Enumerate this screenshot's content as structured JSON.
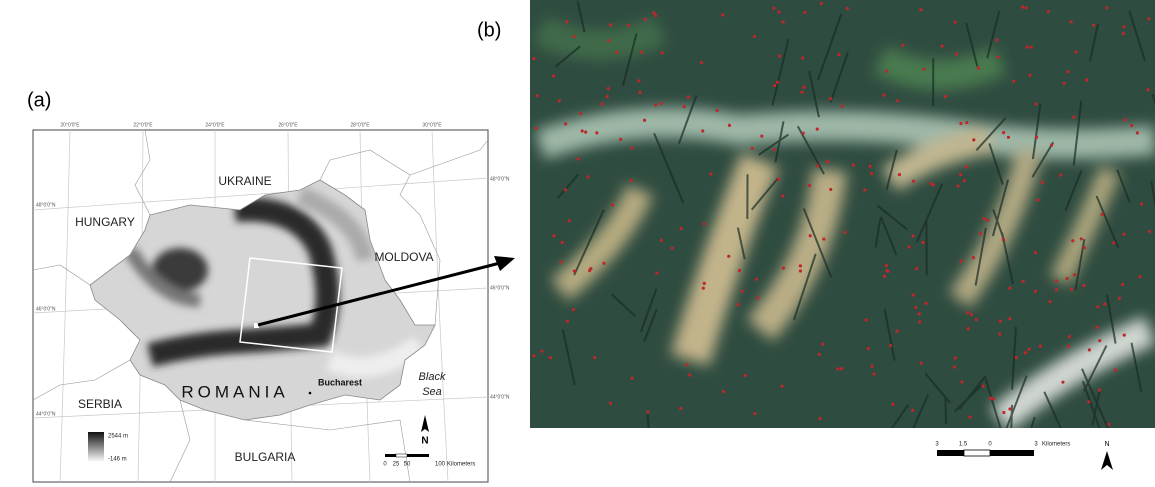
{
  "panel_a": {
    "label": "(a)",
    "countries": [
      "UKRAINE",
      "HUNGARY",
      "MOLDOVA",
      "SERBIA",
      "BULGARIA"
    ],
    "country_name": "ROMANIA",
    "capital": "Bucharest",
    "sea": [
      "Black",
      "Sea"
    ],
    "legend": {
      "max": "2544 m",
      "min": "-146 m"
    },
    "scale": {
      "ticks": [
        "0",
        "25",
        "50",
        "100"
      ],
      "unit": "Kilometers"
    },
    "north": "N",
    "graticule": {
      "top": [
        "20°0'0\"E",
        "22°0'0\"E",
        "24°0'0\"E",
        "26°0'0\"E",
        "28°0'0\"E",
        "30°0'0\"E"
      ],
      "left": [
        "48°0'0\"N",
        "46°0'0\"N",
        "44°0'0\"N"
      ],
      "right": [
        "48°0'0\"N",
        "46°0'0\"N",
        "44°0'0\"N"
      ]
    }
  },
  "panel_b": {
    "label": "(b)",
    "scale": {
      "ticks": [
        "3",
        "1.5",
        "0",
        "3"
      ],
      "unit": "Kilometers"
    },
    "north": "N"
  }
}
